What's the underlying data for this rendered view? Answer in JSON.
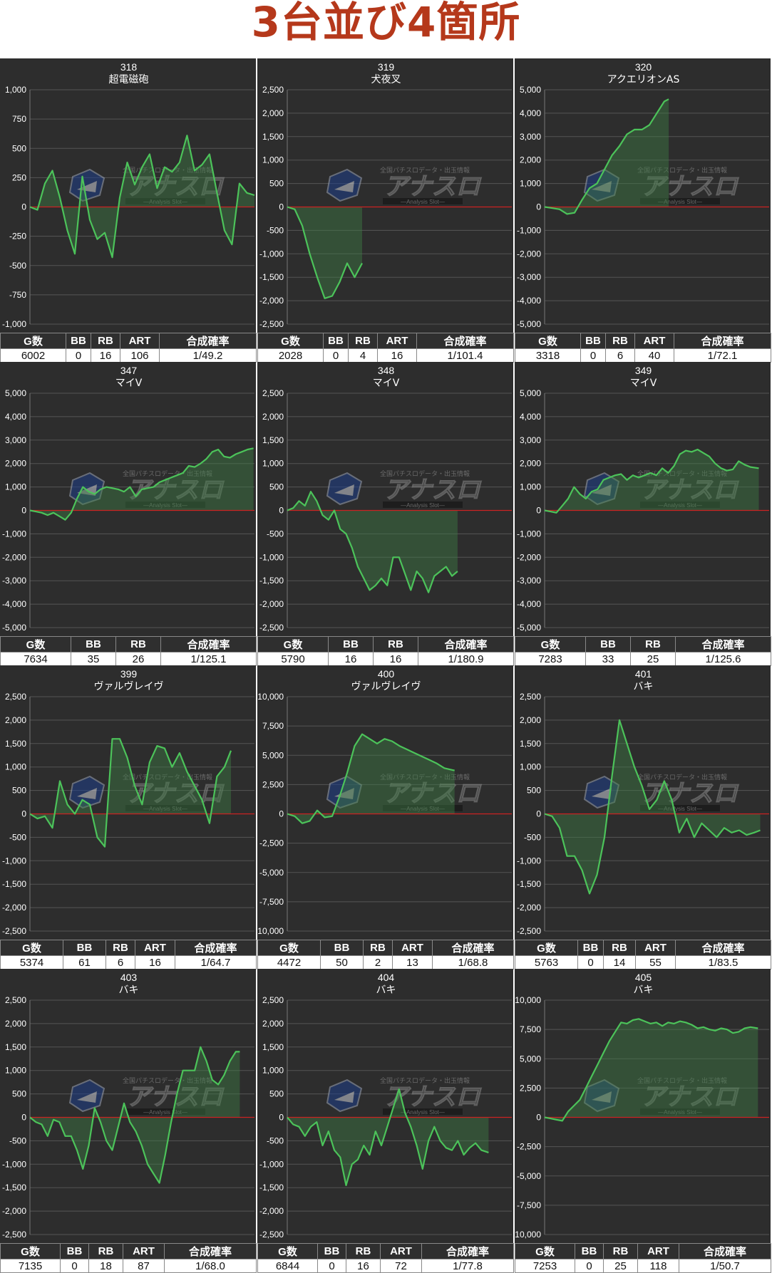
{
  "title": "3台並び4箇所",
  "watermark": {
    "text": "アナスロ",
    "sub": "―Analysis Slot―",
    "top": "全国パチスロデータ・出玉情報"
  },
  "colors": {
    "line": "#4cc35a",
    "fill": "#3e7d45",
    "zero_line": "#cc2222",
    "panel_bg": "#2d2d2d",
    "grid": "#555555",
    "title_color": "#b5381b"
  },
  "chart_data": [
    {
      "type": "area",
      "machine_no": "318",
      "model": "超電磁砲",
      "ylim": [
        -1000,
        1000
      ],
      "yticks": [
        -1000,
        -750,
        -500,
        -250,
        0,
        250,
        500,
        750,
        1000
      ],
      "games_x": 6002,
      "x": [
        0,
        200,
        400,
        600,
        800,
        1000,
        1200,
        1400,
        1600,
        1800,
        2000,
        2200,
        2400,
        2600,
        2800,
        3000,
        3200,
        3400,
        3600,
        3800,
        4000,
        4200,
        4400,
        4600,
        4800,
        5000,
        5200,
        5400,
        5600,
        5800,
        6000
      ],
      "y": [
        0,
        -25,
        200,
        310,
        80,
        -200,
        -400,
        260,
        -110,
        -275,
        -220,
        -430,
        80,
        380,
        190,
        340,
        450,
        160,
        340,
        300,
        380,
        610,
        310,
        360,
        450,
        120,
        -200,
        -320,
        200,
        120,
        100
      ],
      "stats": {
        "columns": [
          "G数",
          "BB",
          "RB",
          "ART",
          "合成確率"
        ],
        "values": [
          "6002",
          "0",
          "16",
          "106",
          "1/49.2"
        ],
        "widths": [
          92,
          35,
          41,
          55,
          136
        ]
      }
    },
    {
      "type": "area",
      "machine_no": "319",
      "model": "犬夜叉",
      "ylim": [
        -2500,
        2500
      ],
      "yticks": [
        -2500,
        -2000,
        -1500,
        -1000,
        -500,
        0,
        500,
        1000,
        1500,
        2000,
        2500
      ],
      "games_x": 6002,
      "x": [
        0,
        200,
        400,
        600,
        800,
        1000,
        1200,
        1400,
        1600,
        1800,
        2000
      ],
      "y": [
        0,
        -50,
        -400,
        -1000,
        -1500,
        -1950,
        -1900,
        -1600,
        -1200,
        -1500,
        -1200
      ],
      "stats": {
        "columns": [
          "G数",
          "BB",
          "RB",
          "ART",
          "合成確率"
        ],
        "values": [
          "2028",
          "0",
          "4",
          "16",
          "1/101.4"
        ],
        "widths": [
          92,
          35,
          41,
          55,
          136
        ]
      }
    },
    {
      "type": "area",
      "machine_no": "320",
      "model": "アクエリオンAS",
      "ylim": [
        -5000,
        5000
      ],
      "yticks": [
        -5000,
        -4000,
        -3000,
        -2000,
        -1000,
        0,
        1000,
        2000,
        3000,
        4000,
        5000
      ],
      "games_x": 6002,
      "x": [
        0,
        200,
        400,
        600,
        800,
        1000,
        1200,
        1400,
        1600,
        1800,
        2000,
        2200,
        2400,
        2600,
        2800,
        3000,
        3200,
        3318
      ],
      "y": [
        0,
        -50,
        -100,
        -300,
        -250,
        300,
        800,
        1000,
        1600,
        2200,
        2600,
        3100,
        3300,
        3300,
        3500,
        4000,
        4500,
        4600
      ],
      "stats": {
        "columns": [
          "G数",
          "BB",
          "RB",
          "ART",
          "合成確率"
        ],
        "values": [
          "3318",
          "0",
          "6",
          "40",
          "1/72.1"
        ],
        "widths": [
          92,
          35,
          41,
          55,
          136
        ]
      }
    },
    {
      "type": "area",
      "machine_no": "347",
      "model": "マイV",
      "ylim": [
        -5000,
        5000
      ],
      "yticks": [
        -5000,
        -4000,
        -3000,
        -2000,
        -1000,
        0,
        1000,
        2000,
        3000,
        4000,
        5000
      ],
      "games_x": 7634,
      "x": [
        0,
        200,
        400,
        600,
        800,
        1000,
        1200,
        1400,
        1600,
        1800,
        2000,
        2200,
        2400,
        2600,
        2800,
        3000,
        3200,
        3400,
        3600,
        3800,
        4000,
        4200,
        4400,
        4600,
        4800,
        5000,
        5200,
        5400,
        5600,
        5800,
        6000,
        6200,
        6400,
        6600,
        6800,
        7000,
        7200,
        7400,
        7600
      ],
      "y": [
        0,
        -50,
        -100,
        -200,
        -100,
        -250,
        -400,
        -100,
        500,
        1000,
        800,
        700,
        900,
        1000,
        950,
        900,
        800,
        1000,
        600,
        900,
        950,
        1000,
        1200,
        1300,
        1400,
        1500,
        1600,
        1900,
        1850,
        2000,
        2200,
        2500,
        2600,
        2300,
        2250,
        2400,
        2500,
        2600,
        2650
      ],
      "stats": {
        "columns": [
          "G数",
          "BB",
          "RB",
          "合成確率"
        ],
        "values": [
          "7634",
          "35",
          "26",
          "1/125.1"
        ],
        "widths": [
          99,
          63,
          63,
          134
        ]
      }
    },
    {
      "type": "area",
      "machine_no": "348",
      "model": "マイV",
      "ylim": [
        -2500,
        2500
      ],
      "yticks": [
        -2500,
        -2000,
        -1500,
        -1000,
        -500,
        0,
        500,
        1000,
        1500,
        2000,
        2500
      ],
      "games_x": 7634,
      "x": [
        0,
        200,
        400,
        600,
        800,
        1000,
        1200,
        1400,
        1600,
        1800,
        2000,
        2200,
        2400,
        2600,
        2800,
        3000,
        3200,
        3400,
        3600,
        3800,
        4000,
        4200,
        4400,
        4600,
        4800,
        5000,
        5200,
        5400,
        5600,
        5790
      ],
      "y": [
        0,
        50,
        200,
        100,
        400,
        200,
        -100,
        -200,
        0,
        -400,
        -500,
        -800,
        -1200,
        -1450,
        -1700,
        -1600,
        -1450,
        -1600,
        -1000,
        -1000,
        -1350,
        -1700,
        -1300,
        -1450,
        -1750,
        -1400,
        -1300,
        -1200,
        -1400,
        -1300
      ],
      "stats": {
        "columns": [
          "G数",
          "BB",
          "RB",
          "合成確率"
        ],
        "values": [
          "5790",
          "16",
          "16",
          "1/180.9"
        ],
        "widths": [
          99,
          63,
          63,
          134
        ]
      }
    },
    {
      "type": "area",
      "machine_no": "349",
      "model": "マイV",
      "ylim": [
        -5000,
        5000
      ],
      "yticks": [
        -5000,
        -4000,
        -3000,
        -2000,
        -1000,
        0,
        1000,
        2000,
        3000,
        4000,
        5000
      ],
      "games_x": 7634,
      "x": [
        0,
        200,
        400,
        600,
        800,
        1000,
        1200,
        1400,
        1600,
        1800,
        2000,
        2200,
        2400,
        2600,
        2800,
        3000,
        3200,
        3400,
        3600,
        3800,
        4000,
        4200,
        4400,
        4600,
        4800,
        5000,
        5200,
        5400,
        5600,
        5800,
        6000,
        6200,
        6400,
        6600,
        6800,
        7000,
        7283
      ],
      "y": [
        0,
        -50,
        -100,
        200,
        500,
        1000,
        700,
        500,
        800,
        900,
        1300,
        1400,
        1500,
        1550,
        1300,
        1500,
        1400,
        1500,
        1600,
        1500,
        1800,
        1600,
        1900,
        2400,
        2550,
        2500,
        2600,
        2450,
        2300,
        2000,
        1800,
        1700,
        1750,
        2100,
        1950,
        1850,
        1800
      ],
      "stats": {
        "columns": [
          "G数",
          "BB",
          "RB",
          "合成確率"
        ],
        "values": [
          "7283",
          "33",
          "25",
          "1/125.6"
        ],
        "widths": [
          99,
          63,
          63,
          134
        ]
      }
    },
    {
      "type": "area",
      "machine_no": "399",
      "model": "ヴァルヴレイヴ",
      "ylim": [
        -2500,
        2500
      ],
      "yticks": [
        -2500,
        -2000,
        -1500,
        -1000,
        -500,
        0,
        500,
        1000,
        1500,
        2000,
        2500
      ],
      "games_x": 6002,
      "x": [
        0,
        200,
        400,
        600,
        800,
        1000,
        1200,
        1400,
        1600,
        1800,
        2000,
        2200,
        2400,
        2600,
        2800,
        3000,
        3200,
        3400,
        3600,
        3800,
        4000,
        4200,
        4400,
        4600,
        4800,
        5000,
        5200,
        5374
      ],
      "y": [
        0,
        -100,
        -50,
        -300,
        700,
        200,
        0,
        300,
        200,
        -500,
        -700,
        1600,
        1600,
        1200,
        600,
        200,
        1100,
        1450,
        1400,
        1000,
        1300,
        900,
        600,
        300,
        -200,
        800,
        1000,
        1350
      ],
      "stats": {
        "columns": [
          "G数",
          "BB",
          "RB",
          "ART",
          "合成確率"
        ],
        "values": [
          "5374",
          "61",
          "6",
          "16",
          "1/64.7"
        ],
        "widths": [
          88,
          60,
          41,
          56,
          114
        ]
      }
    },
    {
      "type": "area",
      "machine_no": "400",
      "model": "ヴァルヴレイヴ",
      "ylim": [
        -10000,
        10000
      ],
      "yticks": [
        -10000,
        -7500,
        -5000,
        -2500,
        0,
        2500,
        5000,
        7500,
        10000
      ],
      "games_x": 6002,
      "x": [
        0,
        200,
        400,
        600,
        800,
        1000,
        1200,
        1400,
        1600,
        1800,
        2000,
        2200,
        2400,
        2600,
        2800,
        3000,
        3200,
        3400,
        3600,
        3800,
        4000,
        4200,
        4472
      ],
      "y": [
        0,
        -200,
        -800,
        -600,
        300,
        -300,
        -200,
        1500,
        3500,
        5800,
        6800,
        6400,
        6000,
        6400,
        6200,
        5800,
        5500,
        5200,
        4900,
        4600,
        4300,
        3900,
        3700
      ],
      "stats": {
        "columns": [
          "G数",
          "BB",
          "RB",
          "ART",
          "合成確率"
        ],
        "values": [
          "4472",
          "50",
          "2",
          "13",
          "1/68.8"
        ],
        "widths": [
          88,
          60,
          41,
          56,
          114
        ]
      }
    },
    {
      "type": "area",
      "machine_no": "401",
      "model": "バキ",
      "ylim": [
        -2500,
        2500
      ],
      "yticks": [
        -2500,
        -2000,
        -1500,
        -1000,
        -500,
        0,
        500,
        1000,
        1500,
        2000,
        2500
      ],
      "games_x": 6002,
      "x": [
        0,
        200,
        400,
        600,
        800,
        1000,
        1200,
        1400,
        1600,
        1800,
        2000,
        2200,
        2400,
        2600,
        2800,
        3000,
        3200,
        3400,
        3600,
        3800,
        4000,
        4200,
        4400,
        4600,
        4800,
        5000,
        5200,
        5400,
        5600,
        5763
      ],
      "y": [
        0,
        -50,
        -300,
        -900,
        -900,
        -1200,
        -1700,
        -1300,
        -500,
        800,
        2000,
        1500,
        1000,
        600,
        100,
        300,
        700,
        300,
        -400,
        -100,
        -500,
        -200,
        -350,
        -500,
        -300,
        -400,
        -350,
        -450,
        -400,
        -350
      ],
      "stats": {
        "columns": [
          "G数",
          "BB",
          "RB",
          "ART",
          "合成確率"
        ],
        "values": [
          "5763",
          "0",
          "14",
          "55",
          "1/83.5"
        ],
        "widths": [
          88,
          36,
          45,
          56,
          134
        ]
      }
    },
    {
      "type": "area",
      "machine_no": "403",
      "model": "バキ",
      "ylim": [
        -2500,
        2500
      ],
      "yticks": [
        -2500,
        -2000,
        -1500,
        -1000,
        -500,
        0,
        500,
        1000,
        1500,
        2000,
        2500
      ],
      "games_x": 7634,
      "x": [
        0,
        200,
        400,
        600,
        800,
        1000,
        1200,
        1400,
        1600,
        1800,
        2000,
        2200,
        2400,
        2600,
        2800,
        3000,
        3200,
        3400,
        3600,
        3800,
        4000,
        4200,
        4400,
        4600,
        4800,
        5000,
        5200,
        5400,
        5600,
        5800,
        6000,
        6200,
        6400,
        6600,
        6800,
        7000,
        7135
      ],
      "y": [
        0,
        -100,
        -150,
        -400,
        -50,
        -100,
        -400,
        -400,
        -700,
        -1100,
        -600,
        200,
        -100,
        -500,
        -700,
        -200,
        300,
        -100,
        -300,
        -600,
        -1000,
        -1200,
        -1400,
        -800,
        -100,
        500,
        1000,
        1000,
        1000,
        1500,
        1200,
        800,
        700,
        900,
        1200,
        1400,
        1400
      ],
      "stats": {
        "columns": [
          "G数",
          "BB",
          "RB",
          "ART",
          "合成確率"
        ],
        "values": [
          "7135",
          "0",
          "18",
          "87",
          "1/68.0"
        ],
        "widths": [
          84,
          40,
          48,
          58,
          129
        ]
      }
    },
    {
      "type": "area",
      "machine_no": "404",
      "model": "バキ",
      "ylim": [
        -2500,
        2500
      ],
      "yticks": [
        -2500,
        -2000,
        -1500,
        -1000,
        -500,
        0,
        500,
        1000,
        1500,
        2000,
        2500
      ],
      "games_x": 7634,
      "x": [
        0,
        200,
        400,
        600,
        800,
        1000,
        1200,
        1400,
        1600,
        1800,
        2000,
        2200,
        2400,
        2600,
        2800,
        3000,
        3200,
        3400,
        3600,
        3800,
        4000,
        4200,
        4400,
        4600,
        4800,
        5000,
        5200,
        5400,
        5600,
        5800,
        6000,
        6200,
        6400,
        6600,
        6844
      ],
      "y": [
        0,
        -150,
        -200,
        -400,
        -200,
        -100,
        -600,
        -300,
        -700,
        -850,
        -1450,
        -1000,
        -900,
        -600,
        -800,
        -300,
        -600,
        -200,
        200,
        600,
        100,
        -200,
        -600,
        -1100,
        -500,
        -200,
        -500,
        -650,
        -700,
        -500,
        -800,
        -650,
        -550,
        -700,
        -750
      ],
      "stats": {
        "columns": [
          "G数",
          "BB",
          "RB",
          "ART",
          "合成確率"
        ],
        "values": [
          "6844",
          "0",
          "16",
          "72",
          "1/77.8"
        ],
        "widths": [
          84,
          40,
          48,
          58,
          129
        ]
      }
    },
    {
      "type": "area",
      "machine_no": "405",
      "model": "バキ",
      "ylim": [
        -10000,
        10000
      ],
      "yticks": [
        -10000,
        -7500,
        -5000,
        -2500,
        0,
        2500,
        5000,
        7500,
        10000
      ],
      "games_x": 7634,
      "x": [
        0,
        200,
        400,
        600,
        800,
        1000,
        1200,
        1400,
        1600,
        1800,
        2000,
        2200,
        2400,
        2600,
        2800,
        3000,
        3200,
        3400,
        3600,
        3800,
        4000,
        4200,
        4400,
        4600,
        4800,
        5000,
        5200,
        5400,
        5600,
        5800,
        6000,
        6200,
        6400,
        6600,
        6800,
        7000,
        7253
      ],
      "y": [
        0,
        -100,
        -200,
        -300,
        500,
        1000,
        1500,
        2500,
        3500,
        4500,
        5500,
        6500,
        7300,
        8100,
        8000,
        8300,
        8400,
        8200,
        8000,
        8100,
        7800,
        8100,
        8000,
        8200,
        8100,
        7900,
        7600,
        7700,
        7500,
        7400,
        7600,
        7500,
        7200,
        7300,
        7600,
        7700,
        7600
      ],
      "stats": {
        "columns": [
          "G数",
          "BB",
          "RB",
          "ART",
          "合成確率"
        ],
        "values": [
          "7253",
          "0",
          "25",
          "118",
          "1/50.7"
        ],
        "widths": [
          84,
          40,
          48,
          58,
          129
        ]
      }
    }
  ]
}
